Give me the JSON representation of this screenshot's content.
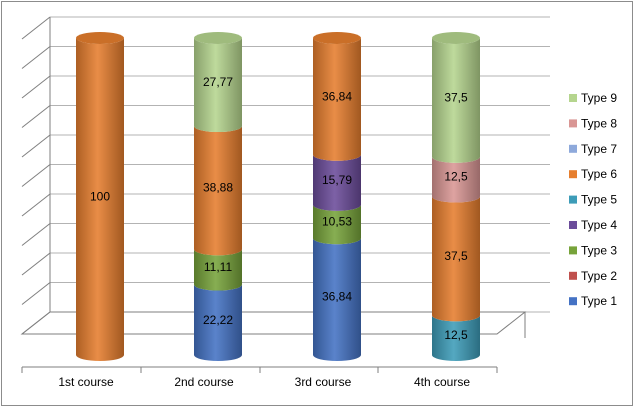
{
  "chart_data": {
    "type": "bar",
    "stacked": true,
    "percent_stacked": true,
    "style": "3d-cylinder",
    "title": "",
    "xlabel": "",
    "ylabel": "",
    "ylim": [
      0,
      100
    ],
    "grid": true,
    "legend_position": "right",
    "categories": [
      "1st course",
      "2nd course",
      "3rd course",
      "4th course"
    ],
    "series": [
      {
        "name": "Type 1",
        "color": "#4472C4",
        "values": [
          0,
          22.22,
          36.84,
          0
        ],
        "labels": [
          null,
          "22,22",
          "36,84",
          null
        ]
      },
      {
        "name": "Type 2",
        "color": "#C0504D",
        "values": [
          0,
          0,
          0,
          0
        ],
        "labels": [
          null,
          null,
          null,
          null
        ]
      },
      {
        "name": "Type 3",
        "color": "#77A33A",
        "values": [
          0,
          11.11,
          10.53,
          0
        ],
        "labels": [
          null,
          "11,11",
          "10,53",
          null
        ]
      },
      {
        "name": "Type 4",
        "color": "#6B4C9A",
        "values": [
          0,
          0,
          15.79,
          0
        ],
        "labels": [
          null,
          null,
          "15,79",
          null
        ]
      },
      {
        "name": "Type 5",
        "color": "#3D9CB8",
        "values": [
          0,
          0,
          0,
          12.5
        ],
        "labels": [
          null,
          null,
          null,
          "12,5"
        ]
      },
      {
        "name": "Type 6",
        "color": "#E67E2E",
        "values": [
          100,
          38.88,
          36.84,
          37.5
        ],
        "labels": [
          "100",
          "38,88",
          "36,84",
          "37,5"
        ]
      },
      {
        "name": "Type 7",
        "color": "#8EA9DB",
        "values": [
          0,
          0,
          0,
          0
        ],
        "labels": [
          null,
          null,
          null,
          null
        ]
      },
      {
        "name": "Type 8",
        "color": "#D99694",
        "values": [
          0,
          0,
          0,
          12.5
        ],
        "labels": [
          null,
          null,
          null,
          "12,5"
        ]
      },
      {
        "name": "Type 9",
        "color": "#B5D58E",
        "values": [
          0,
          27.77,
          0,
          37.5
        ],
        "labels": [
          null,
          "27,77",
          null,
          "37,5"
        ]
      }
    ]
  }
}
